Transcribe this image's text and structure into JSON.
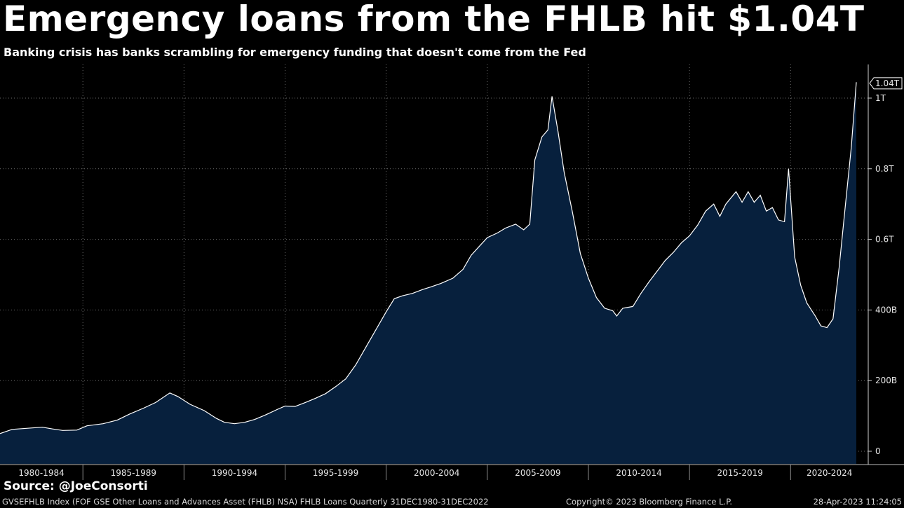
{
  "header": {
    "title": "Emergency loans from the FHLB hit $1.04T",
    "subtitle": "Banking crisis has banks scrambling for emergency funding that doesn't come from the Fed"
  },
  "footer": {
    "source": "Source: @JoeConsorti",
    "index_desc": "GVSEFHLB Index (FOF GSE Other Loans and Advances Asset (FHLB) NSA) FHLB Loans  Quarterly 31DEC1980-31DEC2022",
    "copyright": "Copyright© 2023 Bloomberg Finance L.P.",
    "timestamp": "28-Apr-2023 11:24:05"
  },
  "colors": {
    "background": "#000000",
    "area_fill": "#07203d",
    "line": "#ffffff",
    "grid": "#6a6a6a"
  },
  "chart_data": {
    "type": "area",
    "title": "Emergency loans from the FHLB hit $1.04T",
    "subtitle": "Banking crisis has banks scrambling for emergency funding that doesn't come from the Fed",
    "y_unit": "billions USD",
    "ylim": [
      0,
      1040
    ],
    "xlim": [
      1980.9,
      2023.25
    ],
    "y_ticks": [
      {
        "value": 0,
        "label": "0"
      },
      {
        "value": 200,
        "label": "200B"
      },
      {
        "value": 400,
        "label": "400B"
      },
      {
        "value": 600,
        "label": "0.6T"
      },
      {
        "value": 800,
        "label": "0.8T"
      },
      {
        "value": 1000,
        "label": "1T"
      }
    ],
    "x_ticks": [
      {
        "label": "1980-1984",
        "start": 1980,
        "end": 1985
      },
      {
        "label": "1985-1989",
        "start": 1985,
        "end": 1990
      },
      {
        "label": "1990-1994",
        "start": 1990,
        "end": 1995
      },
      {
        "label": "1995-1999",
        "start": 1995,
        "end": 2000
      },
      {
        "label": "2000-2004",
        "start": 2000,
        "end": 2005
      },
      {
        "label": "2005-2009",
        "start": 2005,
        "end": 2010
      },
      {
        "label": "2010-2014",
        "start": 2010,
        "end": 2015
      },
      {
        "label": "2015-2019",
        "start": 2015,
        "end": 2020
      },
      {
        "label": "2020-2024",
        "start": 2020,
        "end": 2025
      }
    ],
    "last_value_label": "1.04T",
    "grid": true,
    "series": [
      {
        "points": [
          [
            1980.9,
            50
          ],
          [
            1981.5,
            62
          ],
          [
            1982.5,
            66
          ],
          [
            1983.0,
            68
          ],
          [
            1983.5,
            63
          ],
          [
            1984.0,
            59
          ],
          [
            1984.7,
            60
          ],
          [
            1985.2,
            72
          ],
          [
            1986.0,
            78
          ],
          [
            1986.7,
            88
          ],
          [
            1987.3,
            105
          ],
          [
            1988.0,
            122
          ],
          [
            1988.6,
            138
          ],
          [
            1989.3,
            165
          ],
          [
            1989.7,
            155
          ],
          [
            1990.3,
            133
          ],
          [
            1991.0,
            115
          ],
          [
            1991.6,
            93
          ],
          [
            1992.0,
            82
          ],
          [
            1992.5,
            78
          ],
          [
            1993.0,
            82
          ],
          [
            1993.5,
            90
          ],
          [
            1994.0,
            102
          ],
          [
            1994.6,
            118
          ],
          [
            1995.0,
            128
          ],
          [
            1995.5,
            127
          ],
          [
            1996.0,
            138
          ],
          [
            1996.5,
            150
          ],
          [
            1997.0,
            163
          ],
          [
            1997.5,
            183
          ],
          [
            1998.0,
            205
          ],
          [
            1998.5,
            245
          ],
          [
            1999.0,
            295
          ],
          [
            1999.5,
            345
          ],
          [
            2000.0,
            395
          ],
          [
            2000.4,
            432
          ],
          [
            2000.8,
            440
          ],
          [
            2001.3,
            447
          ],
          [
            2001.8,
            458
          ],
          [
            2002.2,
            465
          ],
          [
            2002.7,
            475
          ],
          [
            2003.3,
            490
          ],
          [
            2003.8,
            515
          ],
          [
            2004.2,
            555
          ],
          [
            2004.6,
            580
          ],
          [
            2005.0,
            605
          ],
          [
            2005.5,
            618
          ],
          [
            2005.9,
            632
          ],
          [
            2006.4,
            643
          ],
          [
            2006.8,
            627
          ],
          [
            2007.1,
            643
          ],
          [
            2007.35,
            825
          ],
          [
            2007.7,
            890
          ],
          [
            2008.0,
            910
          ],
          [
            2008.2,
            1005
          ],
          [
            2008.5,
            905
          ],
          [
            2008.8,
            790
          ],
          [
            2009.2,
            680
          ],
          [
            2009.6,
            560
          ],
          [
            2010.0,
            490
          ],
          [
            2010.4,
            435
          ],
          [
            2010.8,
            405
          ],
          [
            2011.2,
            398
          ],
          [
            2011.4,
            383
          ],
          [
            2011.7,
            405
          ],
          [
            2012.2,
            410
          ],
          [
            2012.6,
            447
          ],
          [
            2013.0,
            480
          ],
          [
            2013.4,
            510
          ],
          [
            2013.8,
            540
          ],
          [
            2014.2,
            563
          ],
          [
            2014.6,
            590
          ],
          [
            2015.0,
            610
          ],
          [
            2015.4,
            640
          ],
          [
            2015.8,
            680
          ],
          [
            2016.2,
            700
          ],
          [
            2016.5,
            665
          ],
          [
            2016.8,
            700
          ],
          [
            2017.3,
            735
          ],
          [
            2017.6,
            705
          ],
          [
            2017.9,
            735
          ],
          [
            2018.2,
            705
          ],
          [
            2018.5,
            725
          ],
          [
            2018.8,
            680
          ],
          [
            2019.1,
            690
          ],
          [
            2019.4,
            655
          ],
          [
            2019.7,
            650
          ],
          [
            2019.9,
            800
          ],
          [
            2020.2,
            550
          ],
          [
            2020.5,
            470
          ],
          [
            2020.8,
            420
          ],
          [
            2021.2,
            385
          ],
          [
            2021.5,
            355
          ],
          [
            2021.8,
            350
          ],
          [
            2022.1,
            375
          ],
          [
            2022.4,
            520
          ],
          [
            2022.7,
            690
          ],
          [
            2023.0,
            860
          ],
          [
            2023.25,
            1045
          ]
        ]
      }
    ]
  }
}
